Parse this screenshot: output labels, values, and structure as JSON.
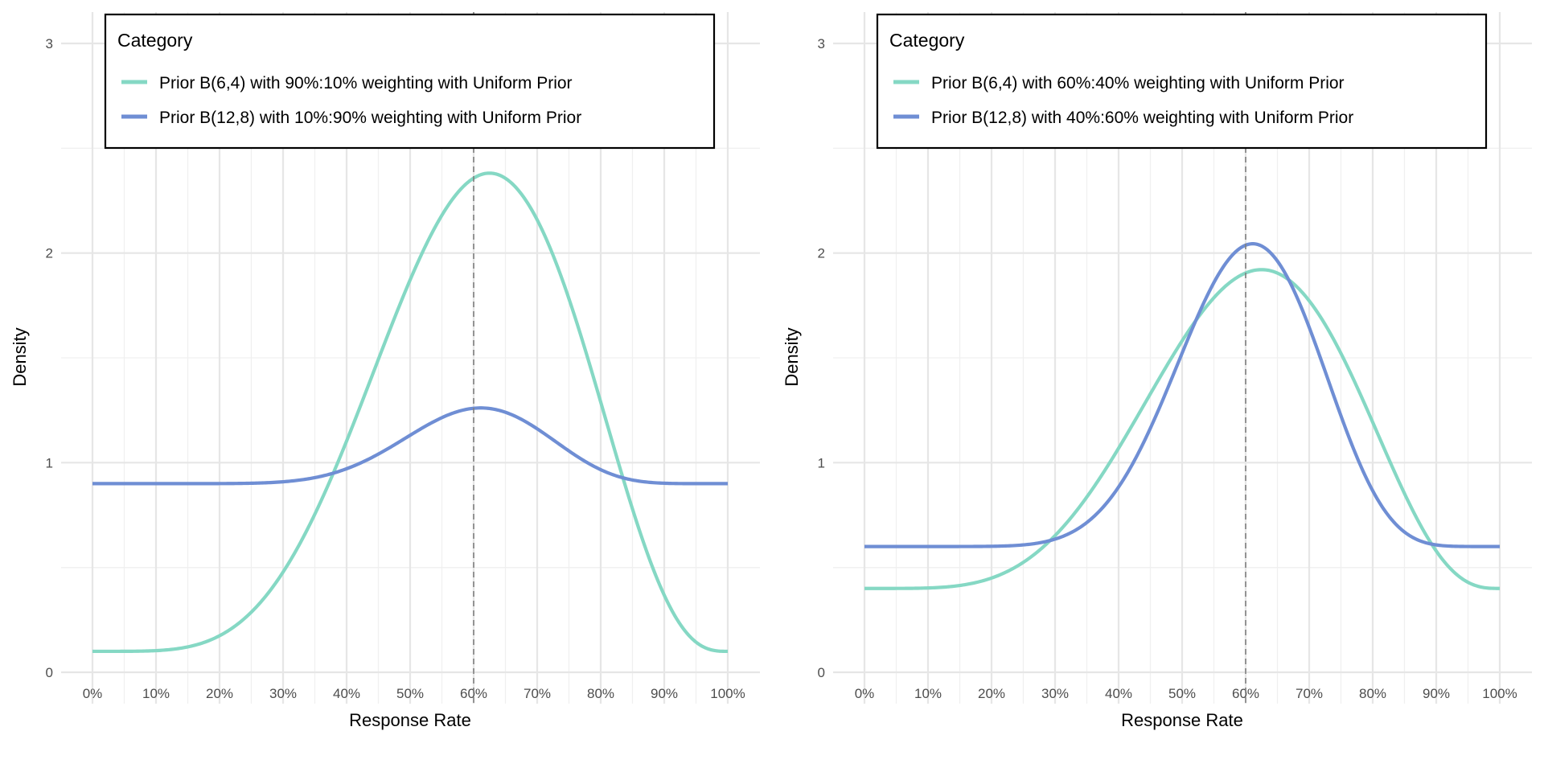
{
  "chart_data": [
    {
      "type": "line",
      "title": "",
      "xlabel": "Response Rate",
      "ylabel": "Density",
      "xlim": [
        0,
        1
      ],
      "ylim": [
        -0.15,
        3.15
      ],
      "x_ticks": [
        "0%",
        "10%",
        "20%",
        "30%",
        "40%",
        "50%",
        "60%",
        "70%",
        "80%",
        "90%",
        "100%"
      ],
      "y_ticks": [
        "0",
        "1",
        "2",
        "3"
      ],
      "grid": true,
      "reference_line": {
        "x": 0.6,
        "style": "dashed",
        "color": "#7f7f7f"
      },
      "legend": {
        "title": "Category",
        "placement": "top-left"
      },
      "series": [
        {
          "name": "Prior B(6,4) with 90%:10% weighting with Uniform Prior",
          "color": "#85d8c4",
          "mixture": {
            "beta_weight": 0.9,
            "alpha": 6,
            "beta": 4,
            "uniform_weight": 0.1
          },
          "x": [
            0,
            0.1,
            0.2,
            0.3,
            0.4,
            0.5,
            0.6,
            0.7,
            0.8,
            0.9,
            1.0
          ],
          "y": [
            0.1,
            0.102,
            0.17,
            0.46,
            1.05,
            1.86,
            2.36,
            2.2,
            1.29,
            0.37,
            0.1
          ]
        },
        {
          "name": "Prior B(12,8) with 10%:90% weighting with Uniform Prior",
          "color": "#6f8ed4",
          "mixture": {
            "beta_weight": 0.1,
            "alpha": 12,
            "beta": 8,
            "uniform_weight": 0.9
          },
          "x": [
            0,
            0.1,
            0.2,
            0.3,
            0.4,
            0.5,
            0.6,
            0.7,
            0.8,
            0.9,
            1.0
          ],
          "y": [
            0.9,
            0.9,
            0.9,
            0.91,
            0.99,
            1.14,
            1.26,
            1.17,
            0.97,
            0.9,
            0.9
          ]
        }
      ]
    },
    {
      "type": "line",
      "title": "",
      "xlabel": "Response Rate",
      "ylabel": "Density",
      "xlim": [
        0,
        1
      ],
      "ylim": [
        -0.15,
        3.15
      ],
      "x_ticks": [
        "0%",
        "10%",
        "20%",
        "30%",
        "40%",
        "50%",
        "60%",
        "70%",
        "80%",
        "90%",
        "100%"
      ],
      "y_ticks": [
        "0",
        "1",
        "2",
        "3"
      ],
      "grid": true,
      "reference_line": {
        "x": 0.6,
        "style": "dashed",
        "color": "#7f7f7f"
      },
      "legend": {
        "title": "Category",
        "placement": "top-left"
      },
      "series": [
        {
          "name": "Prior B(6,4) with 60%:40% weighting with Uniform Prior",
          "color": "#85d8c4",
          "mixture": {
            "beta_weight": 0.6,
            "alpha": 6,
            "beta": 4,
            "uniform_weight": 0.4
          },
          "x": [
            0,
            0.1,
            0.2,
            0.3,
            0.4,
            0.5,
            0.6,
            0.7,
            0.8,
            0.9,
            1.0
          ],
          "y": [
            0.4,
            0.401,
            0.45,
            0.64,
            1.03,
            1.57,
            1.91,
            1.8,
            1.19,
            0.58,
            0.4
          ]
        },
        {
          "name": "Prior B(12,8) with 40%:60% weighting with Uniform Prior",
          "color": "#6f8ed4",
          "mixture": {
            "beta_weight": 0.4,
            "alpha": 12,
            "beta": 8,
            "uniform_weight": 0.6
          },
          "x": [
            0,
            0.1,
            0.2,
            0.3,
            0.4,
            0.5,
            0.6,
            0.7,
            0.8,
            0.9,
            1.0
          ],
          "y": [
            0.6,
            0.6,
            0.6,
            0.64,
            0.95,
            1.56,
            2.03,
            1.68,
            0.89,
            0.61,
            0.6
          ]
        }
      ]
    }
  ]
}
